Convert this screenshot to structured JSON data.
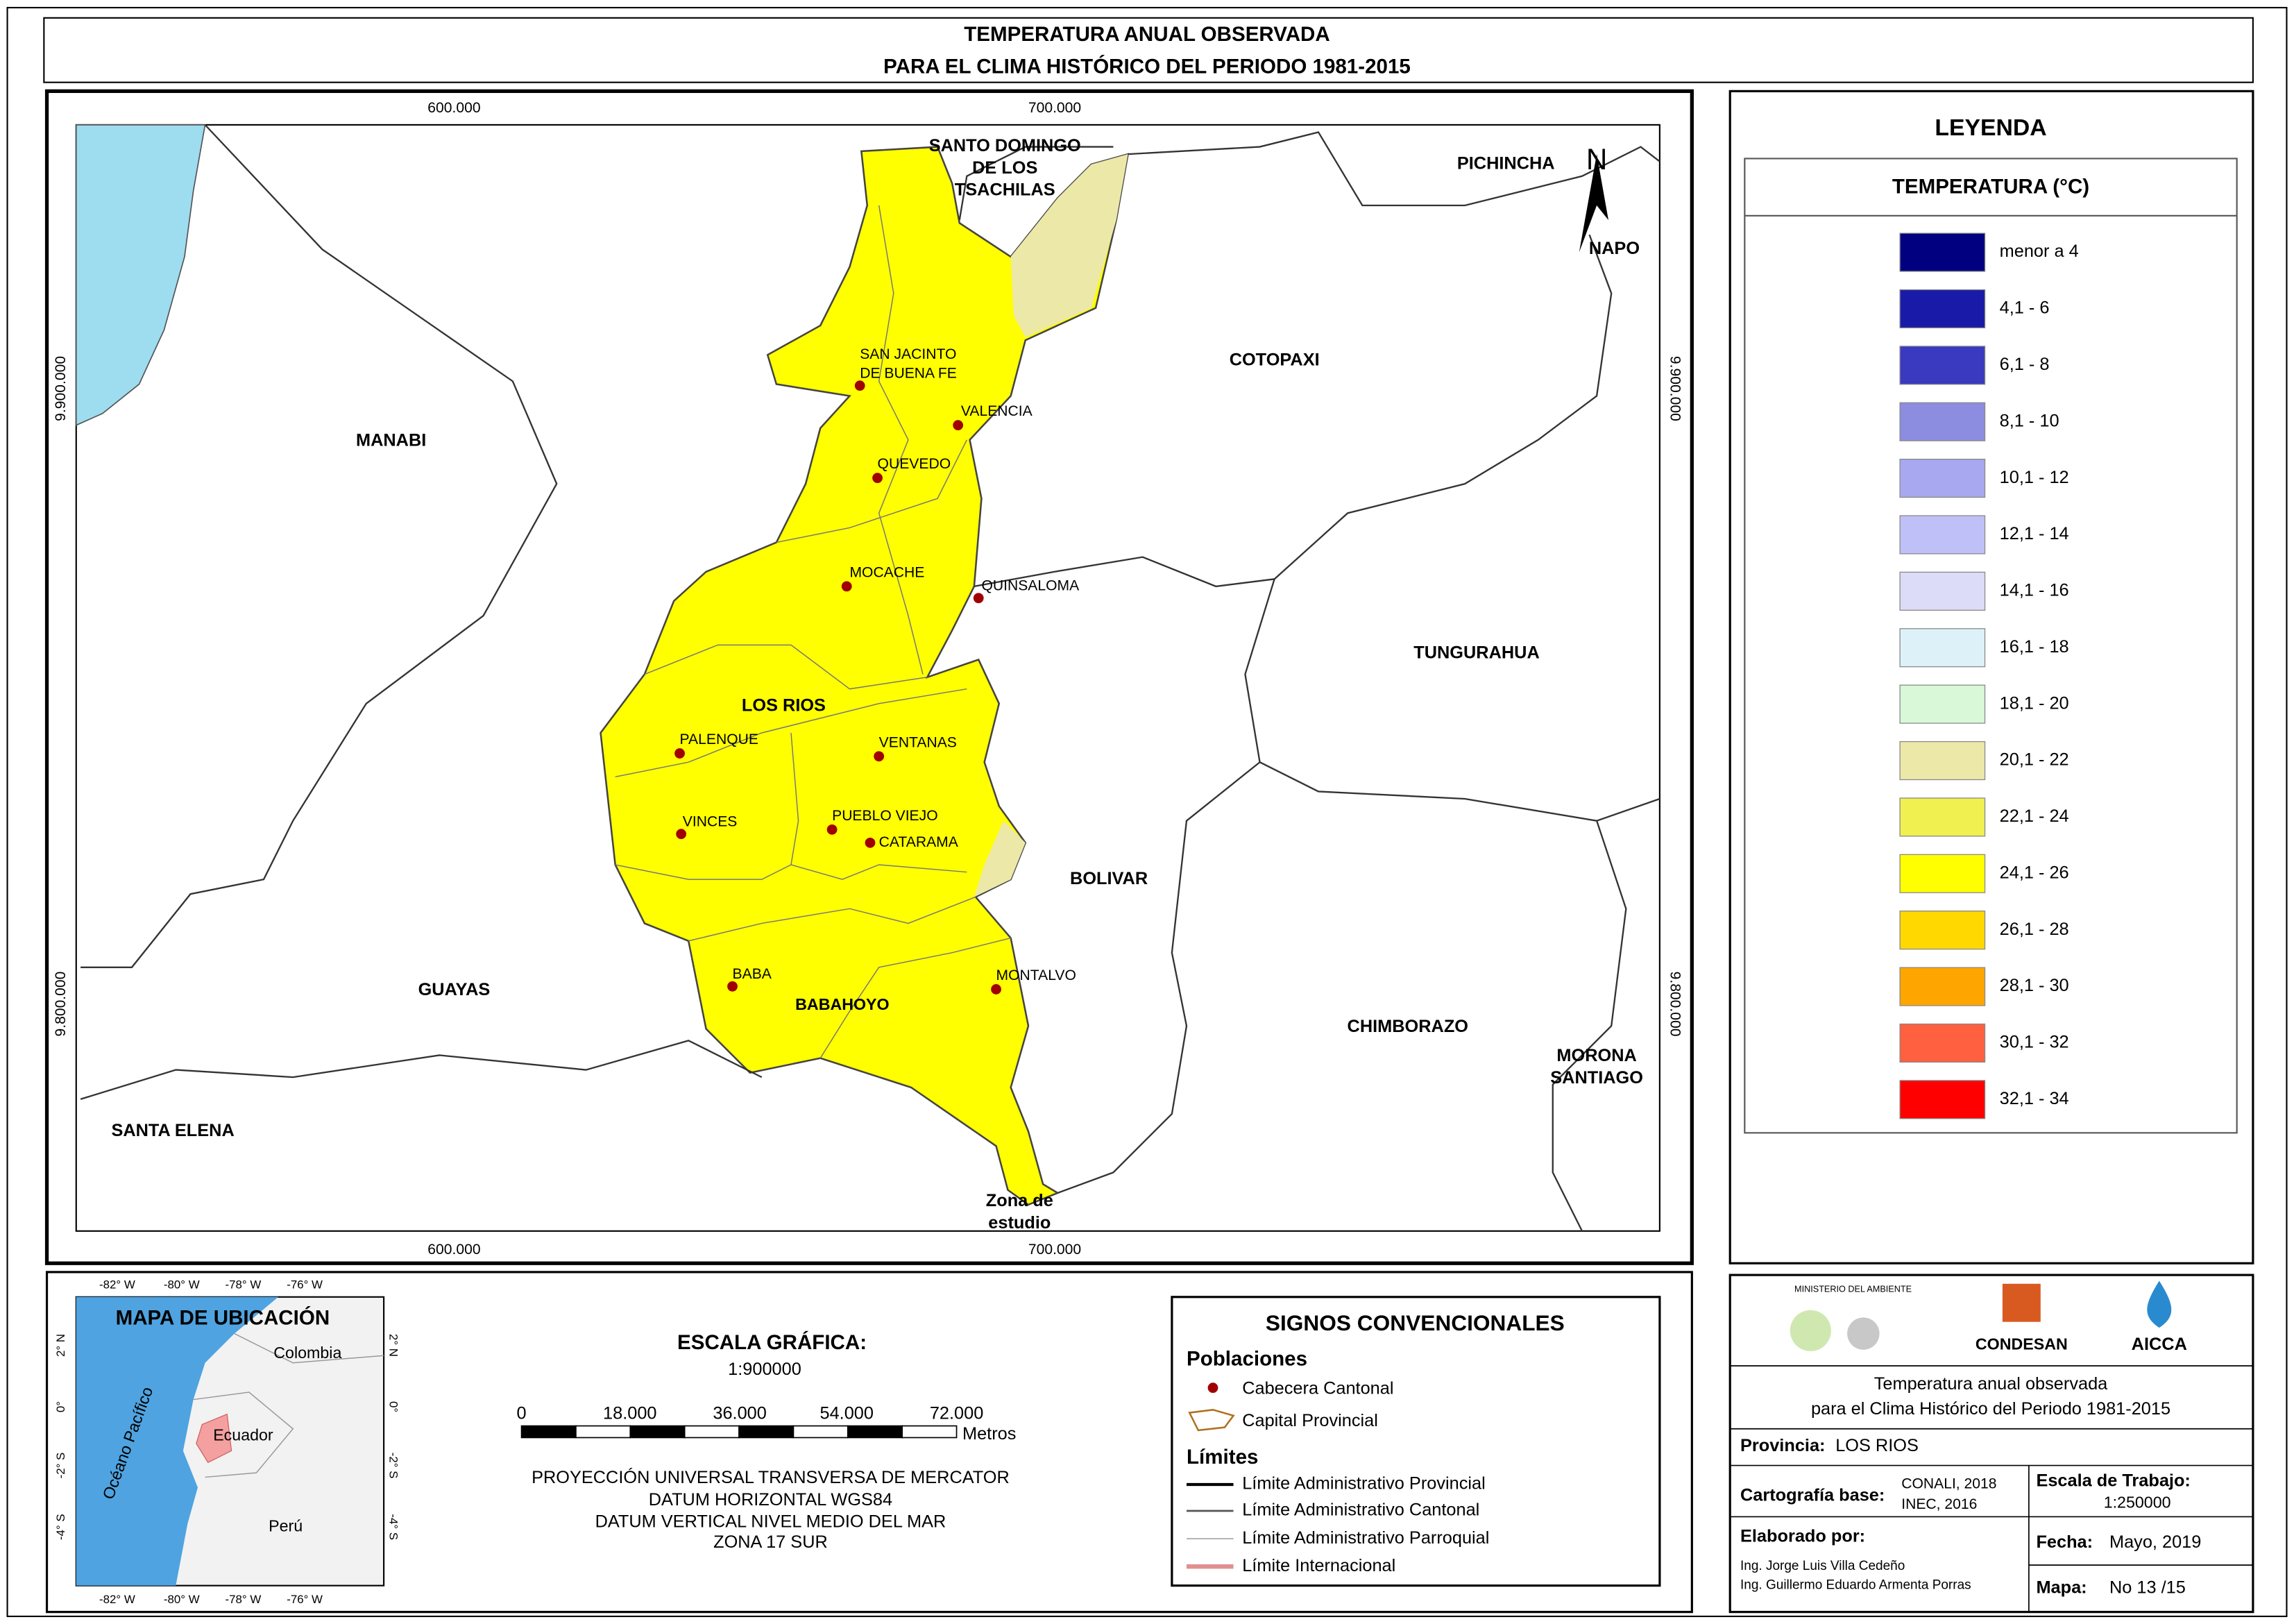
{
  "header": {
    "title_lines": [
      "TEMPERATURA ANUAL OBSERVADA",
      "PARA EL CLIMA HISTÓRICO DEL PERIODO 1981-2015"
    ]
  },
  "map": {
    "x_ticks": [
      "600.000",
      "700.000"
    ],
    "y_ticks": [
      "9.900.000",
      "9.800.000"
    ],
    "north": "N",
    "provinces": [
      "SANTO DOMINGO",
      "DE LOS",
      "TSACHILAS",
      "PICHINCHA",
      "NAPO",
      "COTOPAXI",
      "MANABI",
      "TUNGURAHUA",
      "LOS RIOS",
      "BOLIVAR",
      "GUAYAS",
      "CHIMBORAZO",
      "MORONA",
      "SANTIAGO",
      "SANTA ELENA",
      "Zona de",
      "estudio"
    ],
    "towns": [
      "SAN JACINTO",
      "DE BUENA FE",
      "VALENCIA",
      "QUEVEDO",
      "MOCACHE",
      "QUINSALOMA",
      "PALENQUE",
      "VENTANAS",
      "VINCES",
      "PUEBLO VIEJO",
      "CATARAMA",
      "BABA",
      "BABAHOYO",
      "MONTALVO"
    ]
  },
  "legend": {
    "title": "LEYENDA",
    "subtitle": "TEMPERATURA (°C)",
    "classes": [
      {
        "label": "menor a 4",
        "color": "#000080"
      },
      {
        "label": "4,1 - 6",
        "color": "#1a1aa8"
      },
      {
        "label": "6,1 - 8",
        "color": "#3a3ac0"
      },
      {
        "label": "8,1 - 10",
        "color": "#8c8ce0"
      },
      {
        "label": "10,1 - 12",
        "color": "#a8a8f0"
      },
      {
        "label": "12,1 - 14",
        "color": "#c0c0f8"
      },
      {
        "label": "14,1 - 16",
        "color": "#dcdcf8"
      },
      {
        "label": "16,1 - 18",
        "color": "#ddf2f8"
      },
      {
        "label": "18,1 - 20",
        "color": "#d8f8d8"
      },
      {
        "label": "20,1 - 22",
        "color": "#ece8a8"
      },
      {
        "label": "22,1 - 24",
        "color": "#f0f050"
      },
      {
        "label": "24,1 - 26",
        "color": "#ffff00"
      },
      {
        "label": "26,1 - 28",
        "color": "#ffd800"
      },
      {
        "label": "28,1 - 30",
        "color": "#ffa500"
      },
      {
        "label": "30,1 - 32",
        "color": "#ff6040"
      },
      {
        "label": "32,1 - 34",
        "color": "#ff0000"
      }
    ]
  },
  "location_map": {
    "title": "MAPA DE UBICACIÓN",
    "lon_ticks": [
      "-82° W",
      "-80° W",
      "-78° W",
      "-76° W"
    ],
    "lat_ticks": [
      "2° N",
      "0°",
      "-2° S",
      "-4° S"
    ],
    "countries": [
      "Colombia",
      "Ecuador",
      "Perú"
    ],
    "ocean": "Océano Pacífico"
  },
  "scale": {
    "title": "ESCALA GRÁFICA:",
    "ratio": "1:900000",
    "ticks": [
      "0",
      "18.000",
      "36.000",
      "54.000",
      "72.000"
    ],
    "unit": "Metros",
    "projection": [
      "PROYECCIÓN UNIVERSAL TRANSVERSA DE MERCATOR",
      "DATUM HORIZONTAL WGS84",
      "DATUM VERTICAL NIVEL MEDIO DEL MAR",
      "ZONA 17 SUR"
    ]
  },
  "symbols": {
    "title": "SIGNOS CONVENCIONALES",
    "populations_heading": "Poblaciones",
    "populations": [
      "Cabecera Cantonal",
      "Capital Provincial"
    ],
    "limits_heading": "Límites",
    "limits": [
      "Límite Administrativo Provincial",
      "Límite Administrativo Cantonal",
      "Límite Administrativo Parroquial",
      "Límite Internacional"
    ]
  },
  "info": {
    "logos": [
      "MINISTERIO DEL AMBIENTE",
      "CONDESAN",
      "AICCA"
    ],
    "title_lines": [
      "Temperatura anual observada",
      "para el Clima Histórico del Periodo 1981-2015"
    ],
    "province_label": "Provincia:",
    "province": "LOS RIOS",
    "cartography_label": "Cartografía base:",
    "cartography": [
      "CONALI, 2018",
      "INEC, 2016"
    ],
    "work_scale_label": "Escala de Trabajo:",
    "work_scale": "1:250000",
    "authors_label": "Elaborado por:",
    "authors": [
      "Ing. Jorge Luis Villa Cedeño",
      "Ing. Guillermo Eduardo Armenta Porras"
    ],
    "date_label": "Fecha:",
    "date": "Mayo, 2019",
    "map_label": "Mapa:",
    "map_number": "No 13 /15"
  }
}
